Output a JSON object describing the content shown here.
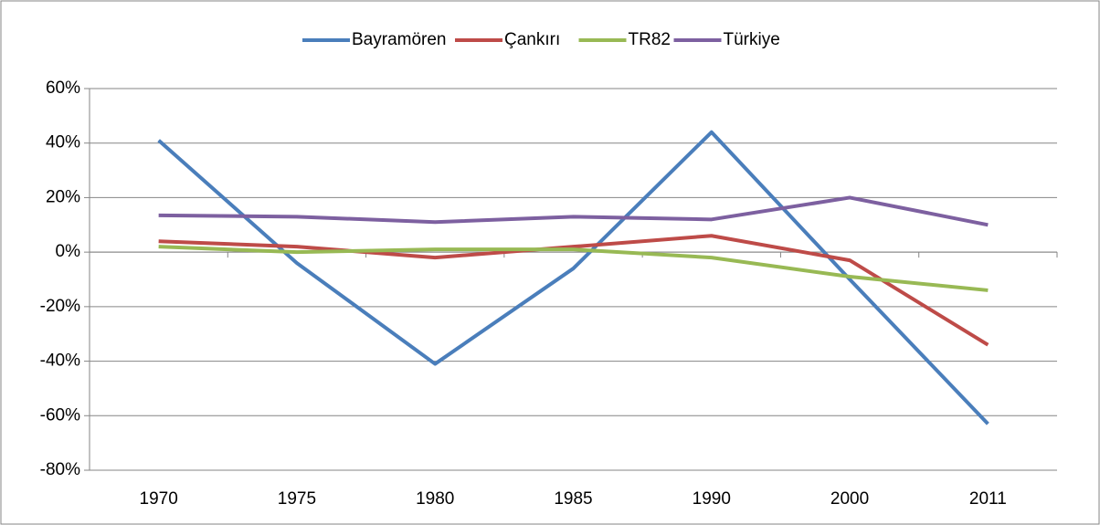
{
  "chart_data": {
    "type": "line",
    "categories": [
      "1970",
      "1975",
      "1980",
      "1985",
      "1990",
      "2000",
      "2011"
    ],
    "series": [
      {
        "name": "Bayramören",
        "color": "#4a7ebb",
        "values": [
          41,
          -4,
          -41,
          -6,
          44,
          -10,
          -63
        ]
      },
      {
        "name": "Çankırı",
        "color": "#be4b48",
        "values": [
          4,
          2,
          -2,
          2,
          6,
          -3,
          -34
        ]
      },
      {
        "name": "TR82",
        "color": "#98b954",
        "values": [
          2,
          0,
          1,
          1,
          -2,
          -9,
          -14
        ]
      },
      {
        "name": "Türkiye",
        "color": "#7d60a0",
        "values": [
          13.5,
          13,
          11,
          13,
          12,
          20,
          10
        ]
      }
    ],
    "ylim": [
      -80,
      60
    ],
    "yticks": [
      {
        "value": -80,
        "label": "-80%"
      },
      {
        "value": -60,
        "label": "-60%"
      },
      {
        "value": -40,
        "label": "-40%"
      },
      {
        "value": -20,
        "label": "-20%"
      },
      {
        "value": 0,
        "label": "0%"
      },
      {
        "value": 20,
        "label": "20%"
      },
      {
        "value": 40,
        "label": "40%"
      },
      {
        "value": 60,
        "label": "60%"
      }
    ],
    "grid": true,
    "legend": "top"
  }
}
